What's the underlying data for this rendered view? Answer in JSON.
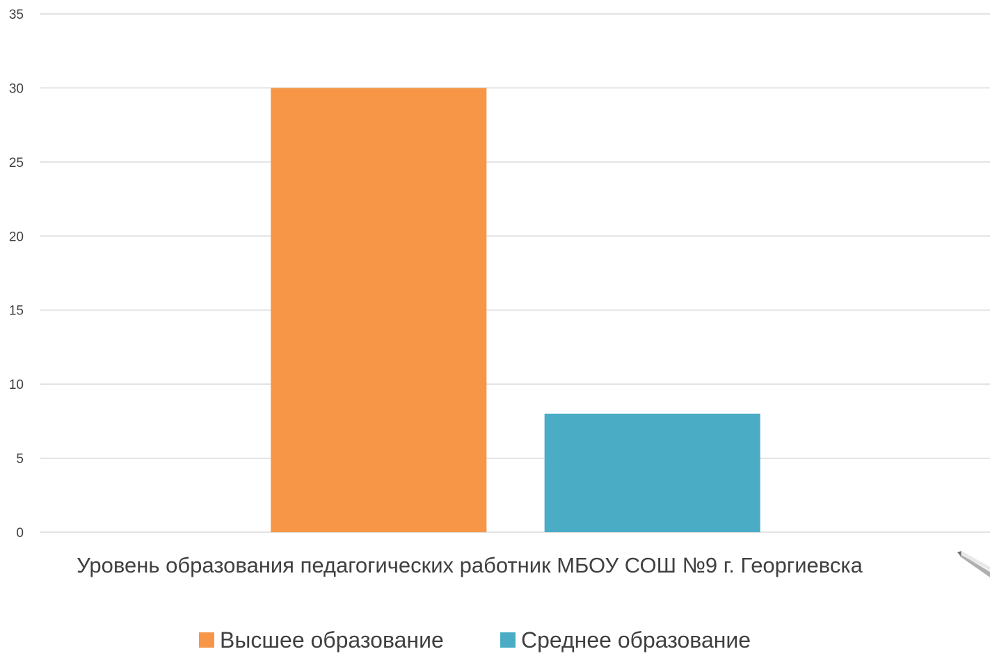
{
  "chart_data": {
    "type": "bar",
    "title": "",
    "xlabel": "",
    "ylabel": "",
    "categories": [
      "Уровень образования педагогических работник МБОУ СОШ №9 г. Георгиевска"
    ],
    "series": [
      {
        "name": "Высшее образование",
        "values": [
          30
        ],
        "color": "#f79646"
      },
      {
        "name": "Среднее образование",
        "values": [
          8
        ],
        "color": "#4bacc6"
      }
    ],
    "ylim": [
      0,
      35
    ],
    "yticks": [
      0,
      5,
      10,
      15,
      20,
      25,
      30,
      35
    ],
    "grid": true,
    "legend": "bottom"
  }
}
